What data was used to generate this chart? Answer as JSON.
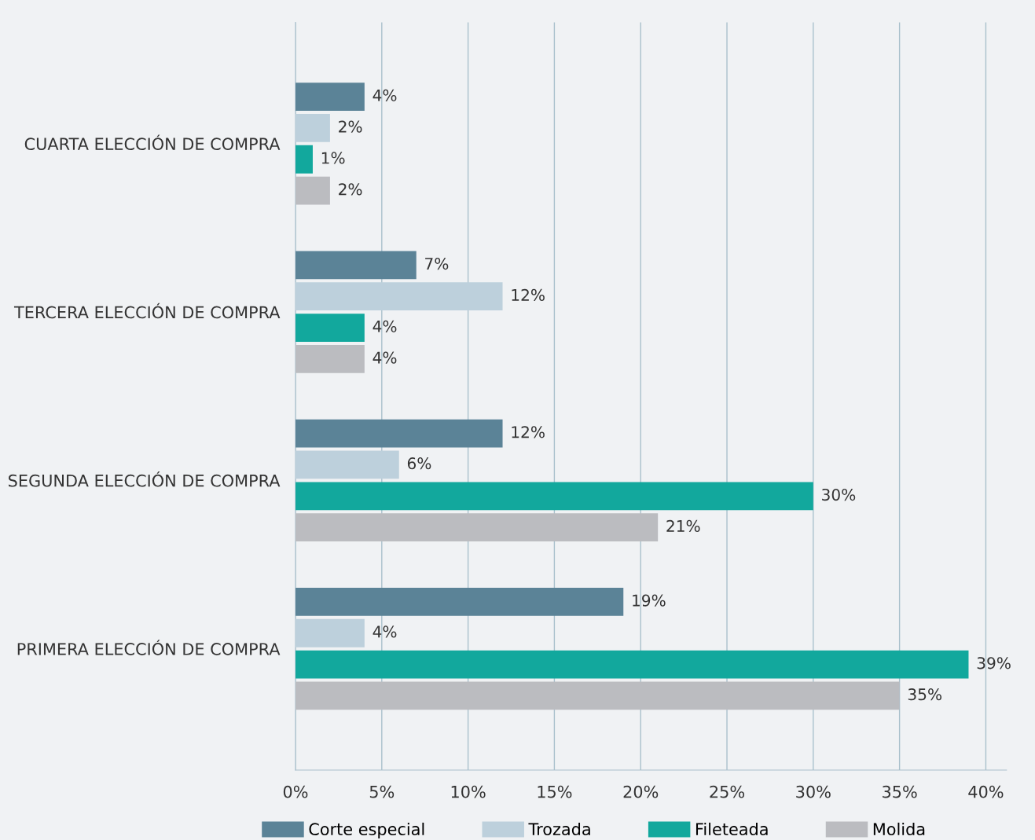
{
  "chart_data": {
    "type": "bar",
    "orientation": "horizontal",
    "categories": [
      "CUARTA ELECCIÓN DE COMPRA",
      "TERCERA ELECCIÓN DE COMPRA",
      "SEGUNDA ELECCIÓN DE COMPRA",
      "PRIMERA ELECCIÓN DE COMPRA"
    ],
    "series": [
      {
        "name": "Corte especial",
        "color": "#5b8397",
        "values": [
          4,
          7,
          12,
          19
        ],
        "value_labels": [
          "4%",
          "7%",
          "12%",
          "19%"
        ]
      },
      {
        "name": "Trozada",
        "color": "#bdd0dc",
        "values": [
          2,
          12,
          6,
          4
        ],
        "value_labels": [
          "2%",
          "12%",
          "6%",
          "4%"
        ]
      },
      {
        "name": "Fileteada",
        "color": "#12a89d",
        "values": [
          1,
          4,
          30,
          39
        ],
        "value_labels": [
          "1%",
          "4%",
          "30%",
          "39%"
        ]
      },
      {
        "name": "Molida",
        "color": "#bbbcc0",
        "values": [
          2,
          4,
          21,
          35
        ],
        "value_labels": [
          "2%",
          "4%",
          "21%",
          "35%"
        ]
      }
    ],
    "xlim": [
      0,
      41.2
    ],
    "xticks": [
      {
        "value": 0,
        "label": "0%"
      },
      {
        "value": 5,
        "label": "5%"
      },
      {
        "value": 10,
        "label": "10%"
      },
      {
        "value": 15,
        "label": "15%"
      },
      {
        "value": 20,
        "label": "20%"
      },
      {
        "value": 25,
        "label": "25%"
      },
      {
        "value": 30,
        "label": "30%"
      },
      {
        "value": 35,
        "label": "35%"
      },
      {
        "value": 40,
        "label": "40%"
      }
    ],
    "grid": "x",
    "legend": "bottom"
  }
}
